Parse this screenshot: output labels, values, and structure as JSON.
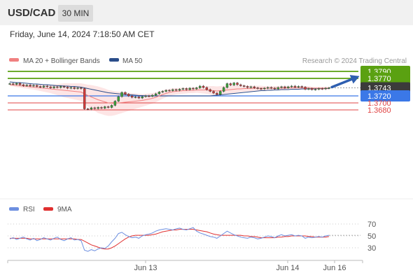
{
  "header": {
    "pair": "USD/CAD",
    "timeframe": "30 MIN"
  },
  "datetime": "Friday, June 14, 2024 7:18:50 AM CET",
  "legend": {
    "ma20": "MA 20 + Bollinger Bands",
    "ma50": "MA 50",
    "credit": "Research © 2024 Trading Central"
  },
  "rsi_legend": {
    "rsi": "RSI",
    "ma9": "9MA"
  },
  "x_labels": [
    "Jun 13",
    "Jun 14",
    "Jun 16"
  ],
  "colors": {
    "green": "#5aa111",
    "blue": "#3b78e7",
    "red": "#e04444",
    "price_dark": "#3b3b3b",
    "ma20": "#f08080",
    "ma50": "#2a4d8a",
    "band": "#fde0e0",
    "arrow": "#2f5fb0",
    "rsi": "#6d8fe0",
    "rsi_ma": "#e03030",
    "candle_up": "#3aa23a",
    "candle_down": "#d13a3a"
  },
  "chart_data": [
    {
      "type": "line",
      "title": "USD/CAD 30 MIN",
      "ylim": [
        1.366,
        1.381
      ],
      "levels": [
        {
          "value": 1.379,
          "label": "1.3790",
          "kind": "resistance"
        },
        {
          "value": 1.377,
          "label": "1.3770",
          "kind": "resistance"
        },
        {
          "value": 1.3743,
          "label": "1.3743",
          "kind": "last"
        },
        {
          "value": 1.372,
          "label": "1.3720",
          "kind": "pivot"
        },
        {
          "value": 1.37,
          "label": "1.3700",
          "kind": "support"
        },
        {
          "value": 1.368,
          "label": "1.3680",
          "kind": "support"
        }
      ],
      "price": [
        1.3755,
        1.3753,
        1.3756,
        1.3752,
        1.3749,
        1.3751,
        1.3748,
        1.375,
        1.3747,
        1.3745,
        1.3748,
        1.3746,
        1.3743,
        1.3746,
        1.3744,
        1.3747,
        1.3745,
        1.3742,
        1.3744,
        1.3741,
        1.3743,
        1.3741,
        1.3683,
        1.3682,
        1.3686,
        1.3684,
        1.3687,
        1.3685,
        1.3689,
        1.3687,
        1.3693,
        1.3705,
        1.3718,
        1.373,
        1.3725,
        1.372,
        1.3716,
        1.3717,
        1.3714,
        1.3718,
        1.372,
        1.3719,
        1.3722,
        1.3726,
        1.3731,
        1.3733,
        1.3736,
        1.3735,
        1.3738,
        1.3736,
        1.3739,
        1.3741,
        1.3738,
        1.3742,
        1.374,
        1.3743,
        1.3748,
        1.3744,
        1.3738,
        1.3733,
        1.3728,
        1.3724,
        1.3733,
        1.3744,
        1.3755,
        1.3751,
        1.3757,
        1.3752,
        1.3749,
        1.3747,
        1.3744,
        1.3746,
        1.3743,
        1.3741,
        1.374,
        1.3742,
        1.3744,
        1.3742,
        1.374,
        1.3744,
        1.3746,
        1.3743,
        1.3746,
        1.3748,
        1.3745,
        1.3747,
        1.3745,
        1.3739,
        1.3741,
        1.3738,
        1.3739,
        1.3741,
        1.374,
        1.3742,
        1.3743
      ],
      "ma20": [
        1.3752,
        1.3751,
        1.375,
        1.3749,
        1.3748,
        1.3747,
        1.3746,
        1.3745,
        1.3744,
        1.3743,
        1.3742,
        1.3741,
        1.374,
        1.3739,
        1.3738,
        1.3737,
        1.3736,
        1.3735,
        1.3734,
        1.3733,
        1.3732,
        1.3731,
        1.3726,
        1.3721,
        1.3717,
        1.3713,
        1.3709,
        1.3706,
        1.3703,
        1.37,
        1.3699,
        1.3699,
        1.37,
        1.3701,
        1.3702,
        1.3703,
        1.3704,
        1.3705,
        1.3706,
        1.3707,
        1.3709,
        1.3711,
        1.3713,
        1.3716,
        1.372,
        1.3724,
        1.3727,
        1.373,
        1.3732,
        1.3733,
        1.3734,
        1.3735,
        1.3735,
        1.3736,
        1.3736,
        1.3737,
        1.3737,
        1.3737,
        1.3737,
        1.3736,
        1.3735,
        1.3734,
        1.3735,
        1.3736,
        1.3737,
        1.3738,
        1.3739,
        1.374,
        1.374,
        1.3741,
        1.3741,
        1.3741,
        1.3742,
        1.3742,
        1.3742,
        1.3742,
        1.3742,
        1.3742,
        1.3742,
        1.3742,
        1.3742,
        1.3742,
        1.3743,
        1.3743,
        1.3743,
        1.3743,
        1.3743,
        1.3743,
        1.3743,
        1.3742,
        1.3742,
        1.3742,
        1.3742,
        1.3742,
        1.3742
      ],
      "ma50": [
        1.376,
        1.3759,
        1.3758,
        1.3758,
        1.3757,
        1.3756,
        1.3755,
        1.3754,
        1.3754,
        1.3753,
        1.3752,
        1.3752,
        1.3751,
        1.375,
        1.3749,
        1.3749,
        1.3748,
        1.3748,
        1.3747,
        1.3747,
        1.3746,
        1.3745,
        1.3743,
        1.3741,
        1.3739,
        1.3737,
        1.3735,
        1.3733,
        1.3731,
        1.3729,
        1.3728,
        1.3727,
        1.3726,
        1.3725,
        1.3724,
        1.3723,
        1.3723,
        1.3722,
        1.3721,
        1.3721,
        1.372,
        1.372,
        1.372,
        1.372,
        1.372,
        1.372,
        1.372,
        1.372,
        1.372,
        1.372,
        1.372,
        1.372,
        1.372,
        1.372,
        1.372,
        1.372,
        1.372,
        1.372,
        1.372,
        1.372,
        1.3721,
        1.3722,
        1.3723,
        1.3724,
        1.3725,
        1.3726,
        1.3727,
        1.3728,
        1.3729,
        1.373,
        1.3731,
        1.3732,
        1.3733,
        1.3734,
        1.3735,
        1.3735,
        1.3736,
        1.3736,
        1.3737,
        1.3737,
        1.3738,
        1.3738,
        1.3738,
        1.3739,
        1.3739,
        1.3739,
        1.374,
        1.374,
        1.374,
        1.374,
        1.3741,
        1.3741,
        1.3741,
        1.3741,
        1.3741
      ],
      "bb_width": [
        0.0004,
        0.0004,
        0.0005,
        0.0005,
        0.0006,
        0.0006,
        0.0007,
        0.0007,
        0.0008,
        0.0009,
        0.001,
        0.0011,
        0.0012,
        0.0014,
        0.0016,
        0.0018,
        0.002,
        0.0021,
        0.0022,
        0.0023,
        0.0024,
        0.0025,
        0.0028,
        0.0031,
        0.0034,
        0.0036,
        0.0038,
        0.0038,
        0.0038,
        0.0037,
        0.0036,
        0.0034,
        0.0032,
        0.003,
        0.0028,
        0.0026,
        0.0024,
        0.0022,
        0.002,
        0.0018,
        0.0017,
        0.0016,
        0.0015,
        0.0014,
        0.0013,
        0.0012,
        0.0011,
        0.001,
        0.001,
        0.0009,
        0.0009,
        0.0009,
        0.0008,
        0.0008,
        0.0008,
        0.0008,
        0.0009,
        0.001,
        0.0011,
        0.0012,
        0.0013,
        0.0013,
        0.0013,
        0.0013,
        0.0012,
        0.0011,
        0.0011,
        0.001,
        0.0009,
        0.0009,
        0.0008,
        0.0008,
        0.0007,
        0.0007,
        0.0007,
        0.0006,
        0.0006,
        0.0006,
        0.0006,
        0.0006,
        0.0006,
        0.0006,
        0.0005,
        0.0005,
        0.0005,
        0.0005,
        0.0005,
        0.0005,
        0.0005,
        0.0004,
        0.0004,
        0.0004,
        0.0004,
        0.0004,
        0.0004
      ],
      "forecast": {
        "from": 1.3743,
        "to": 1.379
      }
    },
    {
      "type": "line",
      "title": "RSI",
      "ylim": [
        20,
        80
      ],
      "ticks": [
        70,
        50,
        30
      ],
      "rsi": [
        45,
        47,
        44,
        46,
        48,
        45,
        43,
        46,
        42,
        44,
        47,
        45,
        43,
        46,
        48,
        44,
        42,
        45,
        47,
        43,
        44,
        42,
        26,
        24,
        27,
        25,
        28,
        30,
        29,
        33,
        40,
        46,
        54,
        56,
        52,
        49,
        47,
        48,
        46,
        50,
        52,
        53,
        55,
        58,
        60,
        61,
        62,
        61,
        60,
        62,
        63,
        61,
        60,
        62,
        64,
        58,
        55,
        53,
        51,
        49,
        48,
        46,
        50,
        54,
        58,
        55,
        52,
        50,
        48,
        47,
        46,
        48,
        47,
        45,
        46,
        48,
        50,
        49,
        47,
        50,
        52,
        50,
        51,
        52,
        50,
        51,
        50,
        46,
        48,
        47,
        48,
        49,
        48,
        50,
        51
      ],
      "ma9": [
        46,
        46,
        46,
        46,
        46,
        46,
        45,
        45,
        45,
        45,
        45,
        45,
        45,
        45,
        45,
        45,
        45,
        45,
        45,
        45,
        44,
        44,
        41,
        38,
        35,
        33,
        31,
        29,
        28,
        28,
        30,
        33,
        37,
        41,
        45,
        48,
        50,
        51,
        51,
        51,
        51,
        51,
        52,
        53,
        55,
        57,
        58,
        59,
        60,
        60,
        61,
        61,
        61,
        61,
        61,
        60,
        59,
        58,
        57,
        55,
        53,
        52,
        51,
        51,
        51,
        51,
        51,
        51,
        51,
        50,
        50,
        49,
        49,
        48,
        47,
        47,
        47,
        47,
        47,
        48,
        48,
        49,
        49,
        50,
        50,
        50,
        50,
        50,
        49,
        49,
        48,
        48,
        48,
        48,
        49
      ]
    }
  ]
}
